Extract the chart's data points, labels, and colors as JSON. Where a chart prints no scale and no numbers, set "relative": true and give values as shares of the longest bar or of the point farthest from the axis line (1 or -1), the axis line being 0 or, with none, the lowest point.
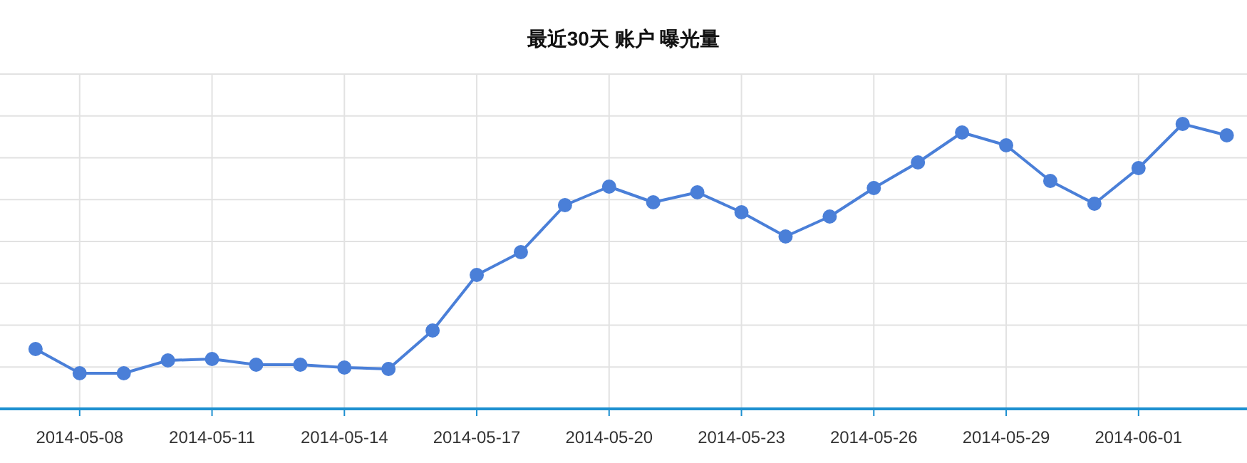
{
  "chart_data": {
    "type": "line",
    "title": "最近30天 账户  曝光量",
    "relative": true,
    "grid": true,
    "marker": "circle",
    "line_style": "solid",
    "x": [
      "2014-05-07",
      "2014-05-08",
      "2014-05-09",
      "2014-05-10",
      "2014-05-11",
      "2014-05-12",
      "2014-05-13",
      "2014-05-14",
      "2014-05-15",
      "2014-05-16",
      "2014-05-17",
      "2014-05-18",
      "2014-05-19",
      "2014-05-20",
      "2014-05-21",
      "2014-05-22",
      "2014-05-23",
      "2014-05-24",
      "2014-05-25",
      "2014-05-26",
      "2014-05-27",
      "2014-05-28",
      "2014-05-29",
      "2014-05-30",
      "2014-05-31",
      "2014-06-01",
      "2014-06-02",
      "2014-06-03"
    ],
    "xlim": [
      "2014-05-06T04:40",
      "2014-06-03T11:00"
    ],
    "xticks": [
      {
        "value": "2014-05-08",
        "label": "2014-05-08"
      },
      {
        "value": "2014-05-11",
        "label": "2014-05-11"
      },
      {
        "value": "2014-05-14",
        "label": "2014-05-14"
      },
      {
        "value": "2014-05-17",
        "label": "2014-05-17"
      },
      {
        "value": "2014-05-20",
        "label": "2014-05-20"
      },
      {
        "value": "2014-05-23",
        "label": "2014-05-23"
      },
      {
        "value": "2014-05-26",
        "label": "2014-05-26"
      },
      {
        "value": "2014-05-29",
        "label": "2014-05-29"
      },
      {
        "value": "2014-06-01",
        "label": "2014-06-01"
      }
    ],
    "series": [
      {
        "color": "#4a7fd8",
        "values": [
          0.21,
          0.125,
          0.125,
          0.17,
          0.175,
          0.155,
          0.155,
          0.145,
          0.14,
          0.275,
          0.47,
          0.55,
          0.715,
          0.78,
          0.725,
          0.76,
          0.69,
          0.605,
          0.675,
          0.775,
          0.865,
          0.97,
          0.925,
          0.8,
          0.72,
          0.845,
          1,
          0.96
        ]
      }
    ]
  }
}
